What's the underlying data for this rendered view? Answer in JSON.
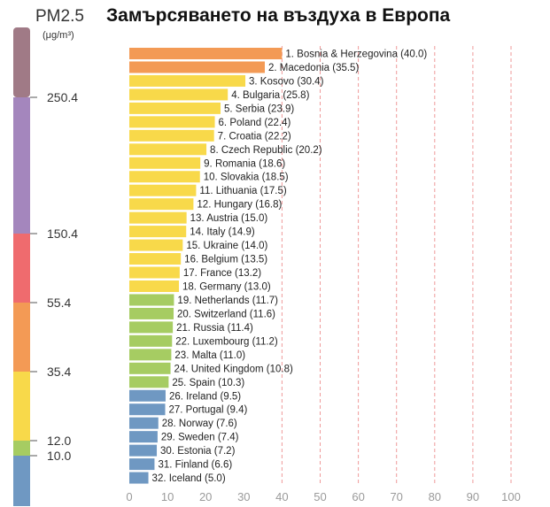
{
  "chart_data": {
    "type": "bar",
    "orientation": "horizontal",
    "title": "Замърсяването на въздуха в Европа",
    "xlim": [
      0,
      100
    ],
    "x_ticks": [
      "0",
      "10",
      "20",
      "30",
      "40",
      "50",
      "60",
      "70",
      "80",
      "90",
      "100"
    ],
    "categories": [
      "1. Bosnia & Herzegovina (40.0)",
      "2. Macedonia (35.5)",
      "3. Kosovo (30.4)",
      "4. Bulgaria (25.8)",
      "5. Serbia (23.9)",
      "6. Poland (22.4)",
      "7. Croatia (22.2)",
      "8. Czech Republic (20.2)",
      "9. Romania (18.6)",
      "10. Slovakia (18.5)",
      "11. Lithuania (17.5)",
      "12. Hungary (16.8)",
      "13. Austria (15.0)",
      "14. Italy (14.9)",
      "15. Ukraine (14.0)",
      "16. Belgium (13.5)",
      "17. France (13.2)",
      "18. Germany (13.0)",
      "19. Netherlands (11.7)",
      "20. Switzerland (11.6)",
      "21. Russia (11.4)",
      "22. Luxembourg (11.2)",
      "23. Malta (11.0)",
      "24. United Kingdom (10.8)",
      "25. Spain (10.3)",
      "26. Ireland (9.5)",
      "27. Portugal (9.4)",
      "28. Norway (7.6)",
      "29. Sweden (7.4)",
      "30. Estonia (7.2)",
      "31. Finland (6.6)",
      "32. Iceland (5.0)"
    ],
    "values": [
      40.0,
      35.5,
      30.4,
      25.8,
      23.9,
      22.4,
      22.2,
      20.2,
      18.6,
      18.5,
      17.5,
      16.8,
      15.0,
      14.9,
      14.0,
      13.5,
      13.2,
      13.0,
      11.7,
      11.6,
      11.4,
      11.2,
      11.0,
      10.8,
      10.3,
      9.5,
      9.4,
      7.6,
      7.4,
      7.2,
      6.6,
      5.0
    ],
    "bar_colors": [
      "#f39a55",
      "#f39a55",
      "#f8d94a",
      "#f8d94a",
      "#f8d94a",
      "#f8d94a",
      "#f8d94a",
      "#f8d94a",
      "#f8d94a",
      "#f8d94a",
      "#f8d94a",
      "#f8d94a",
      "#f8d94a",
      "#f8d94a",
      "#f8d94a",
      "#f8d94a",
      "#f8d94a",
      "#f8d94a",
      "#a6cc62",
      "#a6cc62",
      "#a6cc62",
      "#a6cc62",
      "#a6cc62",
      "#a6cc62",
      "#a6cc62",
      "#6f98c2",
      "#6f98c2",
      "#6f98c2",
      "#6f98c2",
      "#6f98c2",
      "#6f98c2",
      "#6f98c2"
    ],
    "gridline_color": "#ef9a9a",
    "legend": {
      "title": "PM2.5",
      "unit": "(μg/m³)",
      "bands": [
        {
          "color": "#a07a86"
        },
        {
          "color": "#a486bd"
        },
        {
          "color": "#ef6b6e"
        },
        {
          "color": "#f39a55"
        },
        {
          "color": "#f8d94a"
        },
        {
          "color": "#a6cc62"
        },
        {
          "color": "#6f98c2"
        }
      ],
      "thresholds": [
        "250.4",
        "150.4",
        "55.4",
        "35.4",
        "12.0",
        "10.0"
      ]
    }
  }
}
